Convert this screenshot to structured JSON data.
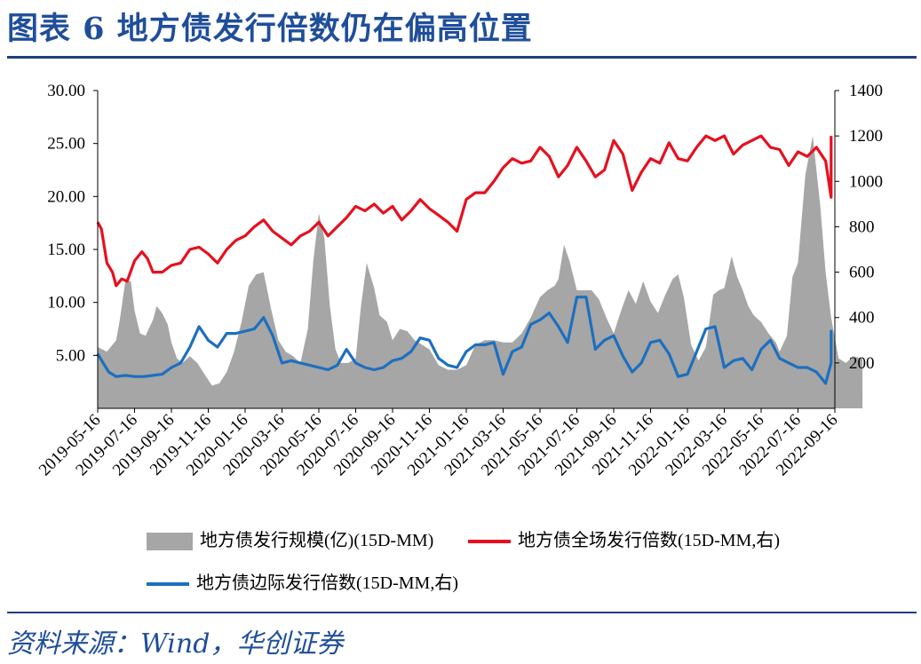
{
  "header": {
    "title": "图表 6 地方债发行倍数仍在偏高位置"
  },
  "footer": {
    "source": "资料来源：Wind，华创证券"
  },
  "chart_data": {
    "type": "area+line",
    "x_tick_labels": [
      "2019-05-16",
      "2019-07-16",
      "2019-09-16",
      "2019-11-16",
      "2020-01-16",
      "2020-03-16",
      "2020-05-16",
      "2020-07-16",
      "2020-09-16",
      "2020-11-16",
      "2021-01-16",
      "2021-03-16",
      "2021-05-16",
      "2021-07-16",
      "2021-09-16",
      "2021-11-16",
      "2022-01-16",
      "2022-03-16",
      "2022-05-16",
      "2022-07-16",
      "2022-09-16"
    ],
    "y_left": {
      "ticks": [
        "5.00",
        "10.00",
        "15.00",
        "20.00",
        "25.00",
        "30.00"
      ],
      "ylim": [
        0,
        30
      ]
    },
    "y_right": {
      "ticks": [
        "200",
        "400",
        "600",
        "800",
        "1000",
        "1200",
        "1400"
      ],
      "ylim": [
        0,
        1400
      ]
    },
    "x_index_range": [
      0,
      41.5
    ],
    "grid": false,
    "legend_placement": "bottom",
    "series": [
      {
        "name": "地方债发行规模(亿)(15D-MM)",
        "kind": "area",
        "axis": "right",
        "color": "#a6a6a6",
        "points": [
          [
            0,
            270
          ],
          [
            0.5,
            250
          ],
          [
            1,
            300
          ],
          [
            1.2,
            390
          ],
          [
            1.5,
            560
          ],
          [
            1.8,
            560
          ],
          [
            2,
            430
          ],
          [
            2.3,
            330
          ],
          [
            2.6,
            320
          ],
          [
            3,
            390
          ],
          [
            3.2,
            450
          ],
          [
            3.5,
            420
          ],
          [
            3.8,
            370
          ],
          [
            4,
            290
          ],
          [
            4.3,
            220
          ],
          [
            4.6,
            200
          ],
          [
            5,
            230
          ],
          [
            5.4,
            200
          ],
          [
            5.8,
            150
          ],
          [
            6.2,
            100
          ],
          [
            6.6,
            110
          ],
          [
            7,
            160
          ],
          [
            7.4,
            250
          ],
          [
            7.8,
            380
          ],
          [
            8.2,
            540
          ],
          [
            8.6,
            590
          ],
          [
            9,
            600
          ],
          [
            9.4,
            440
          ],
          [
            9.8,
            300
          ],
          [
            10.2,
            250
          ],
          [
            10.6,
            230
          ],
          [
            11,
            200
          ],
          [
            11.4,
            350
          ],
          [
            11.7,
            650
          ],
          [
            12,
            860
          ],
          [
            12.3,
            750
          ],
          [
            12.6,
            450
          ],
          [
            12.9,
            260
          ],
          [
            13.2,
            200
          ],
          [
            13.6,
            200
          ],
          [
            14,
            220
          ],
          [
            14.3,
            460
          ],
          [
            14.6,
            640
          ],
          [
            15,
            530
          ],
          [
            15.3,
            410
          ],
          [
            15.7,
            380
          ],
          [
            16,
            300
          ],
          [
            16.4,
            350
          ],
          [
            16.8,
            340
          ],
          [
            17.2,
            300
          ],
          [
            17.6,
            280
          ],
          [
            18,
            260
          ],
          [
            18.5,
            190
          ],
          [
            19,
            170
          ],
          [
            19.5,
            170
          ],
          [
            20,
            190
          ],
          [
            20.5,
            280
          ],
          [
            21,
            300
          ],
          [
            21.5,
            300
          ],
          [
            22,
            290
          ],
          [
            22.5,
            290
          ],
          [
            23,
            330
          ],
          [
            23.5,
            400
          ],
          [
            24,
            490
          ],
          [
            24.4,
            520
          ],
          [
            24.8,
            540
          ],
          [
            25,
            570
          ],
          [
            25.3,
            720
          ],
          [
            25.6,
            650
          ],
          [
            26,
            520
          ],
          [
            26.4,
            520
          ],
          [
            26.8,
            520
          ],
          [
            27.2,
            480
          ],
          [
            27.6,
            400
          ],
          [
            28,
            330
          ],
          [
            28.4,
            430
          ],
          [
            28.8,
            520
          ],
          [
            29.2,
            460
          ],
          [
            29.6,
            560
          ],
          [
            30,
            470
          ],
          [
            30.4,
            420
          ],
          [
            30.8,
            500
          ],
          [
            31.2,
            570
          ],
          [
            31.5,
            590
          ],
          [
            31.8,
            490
          ],
          [
            32.2,
            280
          ],
          [
            32.6,
            210
          ],
          [
            33,
            270
          ],
          [
            33.4,
            500
          ],
          [
            33.7,
            520
          ],
          [
            34,
            530
          ],
          [
            34.2,
            600
          ],
          [
            34.4,
            670
          ],
          [
            34.7,
            580
          ],
          [
            35,
            520
          ],
          [
            35.3,
            450
          ],
          [
            35.6,
            410
          ],
          [
            36,
            380
          ],
          [
            36.4,
            330
          ],
          [
            36.8,
            290
          ],
          [
            37,
            250
          ],
          [
            37.4,
            320
          ],
          [
            37.7,
            580
          ],
          [
            38,
            640
          ],
          [
            38.4,
            1030
          ],
          [
            38.8,
            1200
          ],
          [
            39.2,
            900
          ],
          [
            39.5,
            600
          ],
          [
            39.8,
            400
          ],
          [
            40.2,
            220
          ],
          [
            40.6,
            200
          ],
          [
            41,
            230
          ],
          [
            41.5,
            220
          ]
        ]
      },
      {
        "name": "地方债全场发行倍数(15D-MM,右)",
        "kind": "line",
        "axis": "right",
        "color": "#e6101f",
        "points": [
          [
            0,
            820
          ],
          [
            0.2,
            790
          ],
          [
            0.5,
            640
          ],
          [
            0.8,
            600
          ],
          [
            1,
            540
          ],
          [
            1.3,
            570
          ],
          [
            1.6,
            560
          ],
          [
            2,
            650
          ],
          [
            2.4,
            690
          ],
          [
            2.7,
            660
          ],
          [
            3,
            600
          ],
          [
            3.5,
            600
          ],
          [
            4,
            630
          ],
          [
            4.5,
            640
          ],
          [
            5,
            700
          ],
          [
            5.5,
            710
          ],
          [
            6,
            680
          ],
          [
            6.5,
            640
          ],
          [
            7,
            700
          ],
          [
            7.5,
            740
          ],
          [
            8,
            760
          ],
          [
            8.5,
            800
          ],
          [
            9,
            830
          ],
          [
            9.5,
            780
          ],
          [
            10,
            750
          ],
          [
            10.5,
            720
          ],
          [
            11,
            760
          ],
          [
            11.5,
            780
          ],
          [
            12,
            820
          ],
          [
            12.5,
            760
          ],
          [
            13,
            800
          ],
          [
            13.5,
            840
          ],
          [
            14,
            890
          ],
          [
            14.5,
            870
          ],
          [
            15,
            900
          ],
          [
            15.5,
            860
          ],
          [
            16,
            890
          ],
          [
            16.5,
            830
          ],
          [
            17,
            870
          ],
          [
            17.5,
            920
          ],
          [
            18,
            880
          ],
          [
            18.5,
            850
          ],
          [
            19,
            820
          ],
          [
            19.5,
            780
          ],
          [
            20,
            920
          ],
          [
            20.5,
            950
          ],
          [
            21,
            950
          ],
          [
            21.5,
            1000
          ],
          [
            22,
            1060
          ],
          [
            22.5,
            1100
          ],
          [
            23,
            1080
          ],
          [
            23.5,
            1090
          ],
          [
            24,
            1150
          ],
          [
            24.5,
            1110
          ],
          [
            25,
            1020
          ],
          [
            25.5,
            1070
          ],
          [
            26,
            1150
          ],
          [
            26.5,
            1090
          ],
          [
            27,
            1020
          ],
          [
            27.5,
            1050
          ],
          [
            28,
            1180
          ],
          [
            28.5,
            1120
          ],
          [
            29,
            960
          ],
          [
            29.5,
            1040
          ],
          [
            30,
            1100
          ],
          [
            30.5,
            1080
          ],
          [
            31,
            1170
          ],
          [
            31.5,
            1100
          ],
          [
            32,
            1090
          ],
          [
            32.5,
            1150
          ],
          [
            33,
            1200
          ],
          [
            33.5,
            1180
          ],
          [
            34,
            1200
          ],
          [
            34.5,
            1120
          ],
          [
            35,
            1160
          ],
          [
            35.5,
            1180
          ],
          [
            36,
            1200
          ],
          [
            36.5,
            1150
          ],
          [
            37,
            1140
          ],
          [
            37.5,
            1070
          ],
          [
            38,
            1130
          ],
          [
            38.5,
            1110
          ],
          [
            39,
            1150
          ],
          [
            39.5,
            1090
          ],
          [
            40,
            930
          ],
          [
            40.5,
            1080
          ],
          [
            41,
            1150
          ],
          [
            41.5,
            1190
          ],
          [
            42,
            1140
          ],
          [
            42.5,
            1200
          ]
        ]
      },
      {
        "name": "地方债边际发行倍数(15D-MM,右)",
        "kind": "line",
        "axis": "right",
        "color": "#1d6fbf",
        "points": [
          [
            0,
            240
          ],
          [
            0.3,
            200
          ],
          [
            0.6,
            160
          ],
          [
            1,
            140
          ],
          [
            1.5,
            145
          ],
          [
            2,
            140
          ],
          [
            2.5,
            140
          ],
          [
            3,
            145
          ],
          [
            3.5,
            150
          ],
          [
            4,
            180
          ],
          [
            4.5,
            200
          ],
          [
            5,
            270
          ],
          [
            5.5,
            360
          ],
          [
            6,
            300
          ],
          [
            6.5,
            270
          ],
          [
            7,
            330
          ],
          [
            7.5,
            330
          ],
          [
            8,
            340
          ],
          [
            8.5,
            350
          ],
          [
            9,
            400
          ],
          [
            9.5,
            320
          ],
          [
            10,
            200
          ],
          [
            10.5,
            210
          ],
          [
            11,
            200
          ],
          [
            11.5,
            190
          ],
          [
            12,
            180
          ],
          [
            12.5,
            170
          ],
          [
            13,
            190
          ],
          [
            13.5,
            260
          ],
          [
            14,
            200
          ],
          [
            14.5,
            180
          ],
          [
            15,
            170
          ],
          [
            15.5,
            180
          ],
          [
            16,
            210
          ],
          [
            16.5,
            220
          ],
          [
            17,
            250
          ],
          [
            17.5,
            310
          ],
          [
            18,
            300
          ],
          [
            18.5,
            220
          ],
          [
            19,
            190
          ],
          [
            19.5,
            180
          ],
          [
            20,
            250
          ],
          [
            20.5,
            280
          ],
          [
            21,
            280
          ],
          [
            21.5,
            290
          ],
          [
            22,
            150
          ],
          [
            22.5,
            250
          ],
          [
            23,
            270
          ],
          [
            23.5,
            370
          ],
          [
            24,
            390
          ],
          [
            24.5,
            420
          ],
          [
            25,
            360
          ],
          [
            25.5,
            290
          ],
          [
            26,
            490
          ],
          [
            26.5,
            490
          ],
          [
            27,
            260
          ],
          [
            27.5,
            300
          ],
          [
            28,
            320
          ],
          [
            28.5,
            230
          ],
          [
            29,
            160
          ],
          [
            29.5,
            200
          ],
          [
            30,
            290
          ],
          [
            30.5,
            300
          ],
          [
            31,
            240
          ],
          [
            31.5,
            140
          ],
          [
            32,
            150
          ],
          [
            32.5,
            250
          ],
          [
            33,
            350
          ],
          [
            33.5,
            360
          ],
          [
            34,
            180
          ],
          [
            34.5,
            210
          ],
          [
            35,
            220
          ],
          [
            35.5,
            170
          ],
          [
            36,
            260
          ],
          [
            36.5,
            300
          ],
          [
            37,
            220
          ],
          [
            37.5,
            200
          ],
          [
            38,
            180
          ],
          [
            38.5,
            180
          ],
          [
            39,
            160
          ],
          [
            39.5,
            110
          ],
          [
            40,
            200
          ],
          [
            40.5,
            340
          ],
          [
            41,
            320
          ],
          [
            41.5,
            200
          ],
          [
            42,
            250
          ],
          [
            42.5,
            300
          ]
        ]
      }
    ]
  }
}
